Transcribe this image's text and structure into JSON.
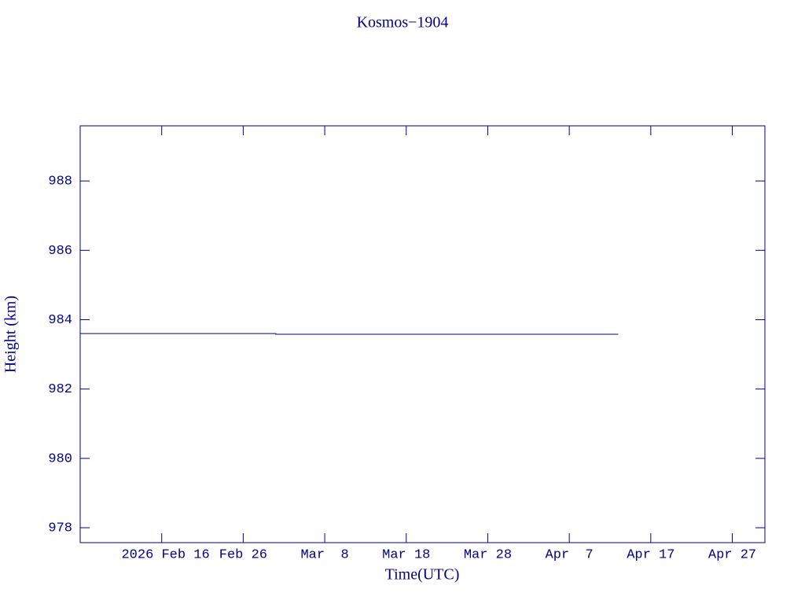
{
  "chart_data": {
    "type": "line",
    "title": "Kosmos−1904",
    "x_label": "Time(UTC)",
    "y_label": "Height (km)",
    "color": "#00008b",
    "x": [
      "2026-02-06",
      "2026-03-02",
      "2026-03-02",
      "2026-04-13"
    ],
    "series": [
      {
        "color": "#00008b",
        "values": [
          983.6,
          983.6,
          983.58,
          983.58
        ]
      }
    ],
    "xlim": [
      "2026-02-06",
      "2026-05-01"
    ],
    "xticks": [
      {
        "value": "2026-02-16",
        "label": "2026 Feb 16"
      },
      {
        "value": "2026-02-26",
        "label": "Feb 26"
      },
      {
        "value": "2026-03-08",
        "label": "Mar  8"
      },
      {
        "value": "2026-03-18",
        "label": "Mar 18"
      },
      {
        "value": "2026-03-28",
        "label": "Mar 28"
      },
      {
        "value": "2026-04-07",
        "label": "Apr  7"
      },
      {
        "value": "2026-04-17",
        "label": "Apr 17"
      },
      {
        "value": "2026-04-27",
        "label": "Apr 27"
      }
    ],
    "ylim": [
      977.57,
      989.59
    ],
    "yticks": [
      978,
      980,
      982,
      984,
      986,
      988
    ]
  }
}
